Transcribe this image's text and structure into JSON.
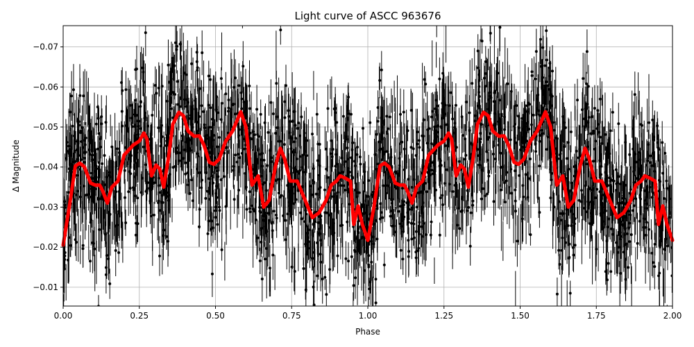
{
  "chart_data": {
    "type": "scatter",
    "title": "Light curve of ASCC 963676",
    "xlabel": "Phase",
    "ylabel": "Δ Magnitude",
    "xlim": [
      0.0,
      2.0
    ],
    "ylim": [
      -0.0053,
      -0.0753
    ],
    "y_inverted": true,
    "grid": true,
    "legend": null,
    "x_ticks": [
      "0.00",
      "0.25",
      "0.50",
      "0.75",
      "1.00",
      "1.25",
      "1.50",
      "1.75",
      "2.00"
    ],
    "x_tick_values": [
      0.0,
      0.25,
      0.5,
      0.75,
      1.0,
      1.25,
      1.5,
      1.75,
      2.0
    ],
    "y_ticks": [
      "−0.07",
      "−0.06",
      "−0.05",
      "−0.04",
      "−0.03",
      "−0.02",
      "−0.01"
    ],
    "y_tick_values": [
      -0.07,
      -0.06,
      -0.05,
      -0.04,
      -0.03,
      -0.02,
      -0.01
    ],
    "series": [
      {
        "name": "observations",
        "kind": "errorbar-scatter",
        "color": "#000000",
        "description": "Dense black points with vertical error bars spanning roughly -0.075 to -0.005, phase-folded and repeated over two cycles",
        "band_upper_envelope_approx": [
          -0.055,
          -0.075,
          -0.075,
          -0.06,
          -0.075,
          -0.07,
          -0.06,
          -0.07,
          -0.055
        ],
        "band_lower_envelope_approx": [
          -0.005,
          -0.01,
          -0.02,
          -0.005,
          -0.005,
          -0.01,
          -0.02,
          -0.005,
          -0.005
        ]
      },
      {
        "name": "smoothed model",
        "kind": "line",
        "color": "#ff0000",
        "linewidth": 5,
        "period": 1.0,
        "x": [
          0.0,
          0.02,
          0.04,
          0.055,
          0.07,
          0.09,
          0.105,
          0.12,
          0.13,
          0.145,
          0.16,
          0.18,
          0.2,
          0.23,
          0.25,
          0.265,
          0.275,
          0.29,
          0.305,
          0.317,
          0.33,
          0.345,
          0.36,
          0.38,
          0.395,
          0.41,
          0.43,
          0.447,
          0.462,
          0.48,
          0.495,
          0.512,
          0.533,
          0.556,
          0.583,
          0.6,
          0.62,
          0.64,
          0.658,
          0.676,
          0.697,
          0.713,
          0.727,
          0.745,
          0.768,
          0.79,
          0.818,
          0.84,
          0.863,
          0.88,
          0.897,
          0.909,
          0.927,
          0.943,
          0.954,
          0.968,
          0.982,
          1.0
        ],
        "y": [
          -0.0205,
          -0.03,
          -0.0403,
          -0.041,
          -0.04,
          -0.036,
          -0.0355,
          -0.0355,
          -0.034,
          -0.031,
          -0.035,
          -0.0365,
          -0.043,
          -0.0455,
          -0.0465,
          -0.0485,
          -0.047,
          -0.0378,
          -0.0405,
          -0.0395,
          -0.035,
          -0.042,
          -0.0507,
          -0.0537,
          -0.0528,
          -0.049,
          -0.0477,
          -0.0478,
          -0.0455,
          -0.0412,
          -0.0407,
          -0.042,
          -0.0464,
          -0.049,
          -0.0538,
          -0.05,
          -0.0355,
          -0.0378,
          -0.03,
          -0.0317,
          -0.0403,
          -0.0447,
          -0.042,
          -0.0365,
          -0.0365,
          -0.0325,
          -0.0274,
          -0.0286,
          -0.0317,
          -0.0355,
          -0.0365,
          -0.0378,
          -0.0372,
          -0.0365,
          -0.0257,
          -0.0303,
          -0.0257,
          -0.0217
        ]
      }
    ]
  }
}
